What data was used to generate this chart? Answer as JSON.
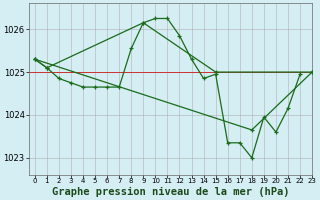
{
  "title": "Graphe pression niveau de la mer (hPa)",
  "background_color": "#d4eef4",
  "plot_bg_color": "#d4eef4",
  "grid_color": "#b0b0b0",
  "line_color": "#1a6b1a",
  "marker_color": "#1a6b1a",
  "hline_color": "#cc3333",
  "hline_y": 1025.0,
  "xlim": [
    -0.5,
    23
  ],
  "ylim": [
    1022.6,
    1026.6
  ],
  "yticks": [
    1023,
    1024,
    1025,
    1026
  ],
  "xticks": [
    0,
    1,
    2,
    3,
    4,
    5,
    6,
    7,
    8,
    9,
    10,
    11,
    12,
    13,
    14,
    15,
    16,
    17,
    18,
    19,
    20,
    21,
    22,
    23
  ],
  "series": [
    {
      "x": [
        0,
        1,
        2,
        3,
        4,
        5,
        6,
        7,
        8,
        9,
        10,
        11,
        12,
        13,
        14,
        15,
        16,
        17,
        18,
        19,
        20,
        21,
        22
      ],
      "y": [
        1025.3,
        1025.1,
        1024.85,
        1024.75,
        1024.65,
        1024.65,
        1024.65,
        1024.65,
        1025.55,
        1026.15,
        1026.25,
        1026.25,
        1025.85,
        1025.3,
        1024.85,
        1024.95,
        1023.35,
        1023.35,
        1023.0,
        1023.95,
        1023.6,
        1024.15,
        1024.95
      ]
    },
    {
      "x": [
        0,
        1,
        9,
        15,
        23
      ],
      "y": [
        1025.3,
        1025.1,
        1026.15,
        1025.0,
        1025.0
      ]
    },
    {
      "x": [
        0,
        18,
        23
      ],
      "y": [
        1025.3,
        1023.65,
        1025.0
      ]
    }
  ],
  "title_fontsize": 7.5,
  "marker_size": 3.5,
  "linewidth": 0.9
}
